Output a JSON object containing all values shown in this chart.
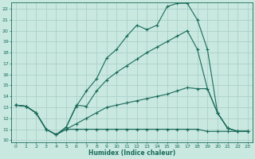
{
  "xlabel": "Humidex (Indice chaleur)",
  "bg_color": "#c8e8e0",
  "line_color": "#1a6b5a",
  "grid_color": "#a8ccc4",
  "xlim": [
    -0.5,
    23.5
  ],
  "ylim": [
    9.8,
    22.6
  ],
  "xticks": [
    0,
    1,
    2,
    3,
    4,
    5,
    6,
    7,
    8,
    9,
    10,
    11,
    12,
    13,
    14,
    15,
    16,
    17,
    18,
    19,
    20,
    21,
    22,
    23
  ],
  "yticks": [
    10,
    11,
    12,
    13,
    14,
    15,
    16,
    17,
    18,
    19,
    20,
    21,
    22
  ],
  "line1_x": [
    0,
    1,
    2,
    3,
    4,
    5,
    6,
    7,
    8,
    9,
    10,
    11,
    12,
    13,
    14,
    15,
    16,
    17,
    18,
    19,
    20,
    21,
    22,
    23
  ],
  "line1_y": [
    13.2,
    13.1,
    12.5,
    11.0,
    10.5,
    11.2,
    13.1,
    14.5,
    15.6,
    17.5,
    18.3,
    19.5,
    20.5,
    20.1,
    20.5,
    22.2,
    22.5,
    22.5,
    21.0,
    18.3,
    12.5,
    11.1,
    10.8,
    10.8
  ],
  "line2_x": [
    0,
    1,
    2,
    3,
    4,
    5,
    6,
    7,
    8,
    9,
    10,
    11,
    12,
    13,
    14,
    15,
    16,
    17,
    18,
    19,
    20,
    21,
    22,
    23
  ],
  "line2_y": [
    13.2,
    13.1,
    12.5,
    11.0,
    10.5,
    11.2,
    13.2,
    13.1,
    14.5,
    15.5,
    16.2,
    16.8,
    17.4,
    18.0,
    18.5,
    19.0,
    19.5,
    20.0,
    18.3,
    14.7,
    12.5,
    11.1,
    10.8,
    10.8
  ],
  "line3_x": [
    0,
    1,
    2,
    3,
    4,
    5,
    6,
    7,
    8,
    9,
    10,
    11,
    12,
    13,
    14,
    15,
    16,
    17,
    18,
    19,
    20,
    21,
    22,
    23
  ],
  "line3_y": [
    13.2,
    13.1,
    12.5,
    11.0,
    10.5,
    11.0,
    11.0,
    11.0,
    11.0,
    11.0,
    11.0,
    11.0,
    11.0,
    11.0,
    11.0,
    11.0,
    11.0,
    11.0,
    11.0,
    10.8,
    10.8,
    10.8,
    10.8,
    10.8
  ],
  "line4_x": [
    0,
    1,
    2,
    3,
    4,
    5,
    6,
    7,
    8,
    9,
    10,
    11,
    12,
    13,
    14,
    15,
    16,
    17,
    18,
    19,
    20,
    21,
    22,
    23
  ],
  "line4_y": [
    13.2,
    13.1,
    12.5,
    11.0,
    10.5,
    11.0,
    11.5,
    12.0,
    12.5,
    13.0,
    13.2,
    13.4,
    13.6,
    13.8,
    14.0,
    14.2,
    14.5,
    14.8,
    14.7,
    14.7,
    12.5,
    11.1,
    10.8,
    10.8
  ]
}
